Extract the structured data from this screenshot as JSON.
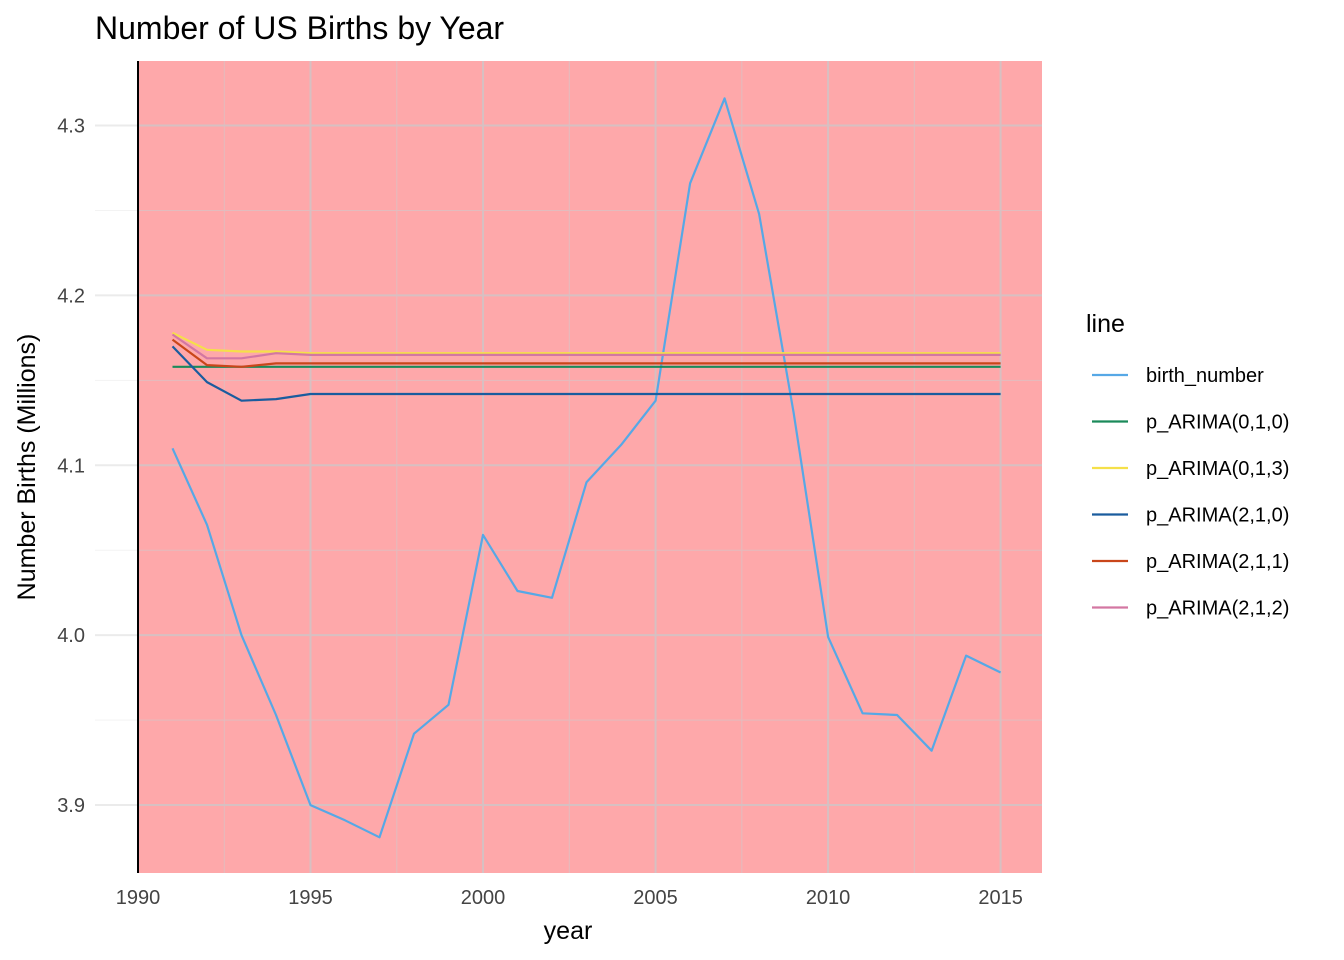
{
  "chart_data": {
    "type": "line",
    "title": "Number of US Births by Year",
    "xlabel": "year",
    "ylabel": "Number Births (Millions)",
    "xlim": [
      1990,
      2016.2
    ],
    "ylim": [
      3.86,
      4.338
    ],
    "x_ticks": [
      1990,
      1995,
      2000,
      2005,
      2010,
      2015
    ],
    "x_tick_labels": [
      "1990",
      "1995",
      "2000",
      "2005",
      "2010",
      "2015"
    ],
    "y_ticks": [
      3.9,
      4.0,
      4.1,
      4.2,
      4.3
    ],
    "y_tick_labels": [
      "3.9",
      "4.0",
      "4.1",
      "4.2",
      "4.3"
    ],
    "grid": true,
    "panel_background": "#fea8aa",
    "legend": {
      "title": "line",
      "position": "right"
    },
    "series": [
      {
        "name": "birth_number",
        "color": "#56a8e6",
        "x": [
          1991,
          1992,
          1993,
          1994,
          1995,
          1996,
          1997,
          1998,
          1999,
          2000,
          2001,
          2002,
          2003,
          2004,
          2005,
          2006,
          2007,
          2008,
          2009,
          2010,
          2011,
          2012,
          2013,
          2014,
          2015
        ],
        "values": [
          4.11,
          4.065,
          4.0,
          3.953,
          3.9,
          3.891,
          3.881,
          3.942,
          3.959,
          4.059,
          4.026,
          4.022,
          4.09,
          4.112,
          4.138,
          4.266,
          4.316,
          4.248,
          4.131,
          3.999,
          3.954,
          3.953,
          3.932,
          3.988,
          3.978
        ]
      },
      {
        "name": "p_ARIMA(0,1,0)",
        "color": "#1b8a5a",
        "x": [
          1991,
          1992,
          1993,
          1994,
          1995,
          1996,
          1997,
          1998,
          1999,
          2000,
          2001,
          2002,
          2003,
          2004,
          2005,
          2006,
          2007,
          2008,
          2009,
          2010,
          2011,
          2012,
          2013,
          2014,
          2015
        ],
        "values": [
          4.158,
          4.158,
          4.158,
          4.158,
          4.158,
          4.158,
          4.158,
          4.158,
          4.158,
          4.158,
          4.158,
          4.158,
          4.158,
          4.158,
          4.158,
          4.158,
          4.158,
          4.158,
          4.158,
          4.158,
          4.158,
          4.158,
          4.158,
          4.158,
          4.158
        ]
      },
      {
        "name": "p_ARIMA(0,1,3)",
        "color": "#f5e049",
        "x": [
          1991,
          1992,
          1993,
          1994,
          1995,
          1996,
          1997,
          1998,
          1999,
          2000,
          2001,
          2002,
          2003,
          2004,
          2005,
          2006,
          2007,
          2008,
          2009,
          2010,
          2011,
          2012,
          2013,
          2014,
          2015
        ],
        "values": [
          4.178,
          4.168,
          4.167,
          4.167,
          4.166,
          4.166,
          4.166,
          4.166,
          4.166,
          4.166,
          4.166,
          4.166,
          4.166,
          4.166,
          4.166,
          4.166,
          4.166,
          4.166,
          4.166,
          4.166,
          4.166,
          4.166,
          4.166,
          4.166,
          4.166
        ]
      },
      {
        "name": "p_ARIMA(2,1,0)",
        "color": "#1a5c9e",
        "x": [
          1991,
          1992,
          1993,
          1994,
          1995,
          1996,
          1997,
          1998,
          1999,
          2000,
          2001,
          2002,
          2003,
          2004,
          2005,
          2006,
          2007,
          2008,
          2009,
          2010,
          2011,
          2012,
          2013,
          2014,
          2015
        ],
        "values": [
          4.17,
          4.149,
          4.138,
          4.139,
          4.142,
          4.142,
          4.142,
          4.142,
          4.142,
          4.142,
          4.142,
          4.142,
          4.142,
          4.142,
          4.142,
          4.142,
          4.142,
          4.142,
          4.142,
          4.142,
          4.142,
          4.142,
          4.142,
          4.142,
          4.142
        ]
      },
      {
        "name": "p_ARIMA(2,1,1)",
        "color": "#c9461a",
        "x": [
          1991,
          1992,
          1993,
          1994,
          1995,
          1996,
          1997,
          1998,
          1999,
          2000,
          2001,
          2002,
          2003,
          2004,
          2005,
          2006,
          2007,
          2008,
          2009,
          2010,
          2011,
          2012,
          2013,
          2014,
          2015
        ],
        "values": [
          4.174,
          4.159,
          4.158,
          4.16,
          4.16,
          4.16,
          4.16,
          4.16,
          4.16,
          4.16,
          4.16,
          4.16,
          4.16,
          4.16,
          4.16,
          4.16,
          4.16,
          4.16,
          4.16,
          4.16,
          4.16,
          4.16,
          4.16,
          4.16,
          4.16
        ]
      },
      {
        "name": "p_ARIMA(2,1,2)",
        "color": "#d377a2",
        "x": [
          1991,
          1992,
          1993,
          1994,
          1995,
          1996,
          1997,
          1998,
          1999,
          2000,
          2001,
          2002,
          2003,
          2004,
          2005,
          2006,
          2007,
          2008,
          2009,
          2010,
          2011,
          2012,
          2013,
          2014,
          2015
        ],
        "values": [
          4.177,
          4.163,
          4.163,
          4.166,
          4.165,
          4.165,
          4.165,
          4.165,
          4.165,
          4.165,
          4.165,
          4.165,
          4.165,
          4.165,
          4.165,
          4.165,
          4.165,
          4.165,
          4.165,
          4.165,
          4.165,
          4.165,
          4.165,
          4.165,
          4.165
        ]
      }
    ]
  }
}
